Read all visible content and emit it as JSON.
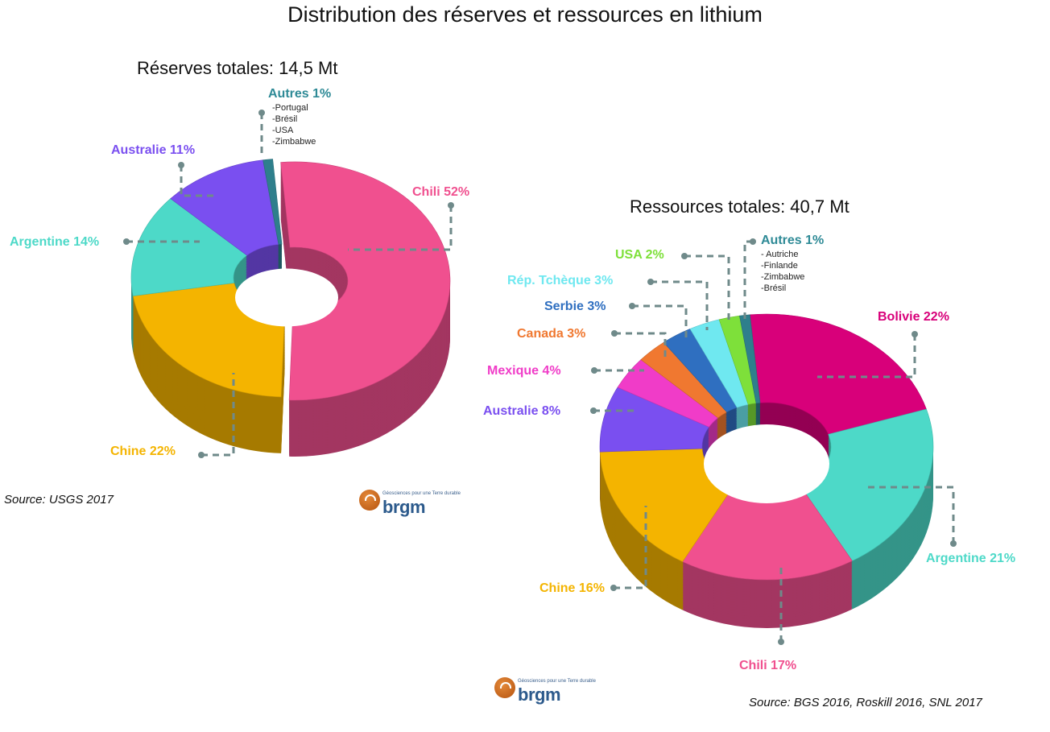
{
  "title": "Distribution des réserves et ressources en lithium",
  "chart_data": [
    {
      "type": "pie",
      "variant": "3d-donut",
      "title": "Réserves totales: 14,5 Mt",
      "source": "Source: USGS 2017",
      "unit": "%",
      "slices": [
        {
          "name": "Chili",
          "value": 52,
          "label": "Chili 52%",
          "color": "#f0508f"
        },
        {
          "name": "Chine",
          "value": 22,
          "label": "Chine 22%",
          "color": "#f4b400"
        },
        {
          "name": "Argentine",
          "value": 14,
          "label": "Argentine 14%",
          "color": "#4dd9c8"
        },
        {
          "name": "Australie",
          "value": 11,
          "label": "Australie 11%",
          "color": "#7a4ff0"
        },
        {
          "name": "Autres",
          "value": 1,
          "label": "Autres 1%",
          "color": "#2e7f8c",
          "details": [
            "-Portugal",
            "-Brésil",
            "-USA",
            "-Zimbabwe"
          ]
        }
      ]
    },
    {
      "type": "pie",
      "variant": "3d-donut",
      "title": "Ressources totales: 40,7 Mt",
      "source": "Source: BGS 2016, Roskill 2016, SNL 2017",
      "unit": "%",
      "slices": [
        {
          "name": "Bolivie",
          "value": 22,
          "label": "Bolivie 22%",
          "color": "#d8007a"
        },
        {
          "name": "Argentine",
          "value": 21,
          "label": "Argentine 21%",
          "color": "#4dd9c8"
        },
        {
          "name": "Chili",
          "value": 17,
          "label": "Chili 17%",
          "color": "#f0508f"
        },
        {
          "name": "Chine",
          "value": 16,
          "label": "Chine 16%",
          "color": "#f4b400"
        },
        {
          "name": "Australie",
          "value": 8,
          "label": "Australie 8%",
          "color": "#7a4ff0"
        },
        {
          "name": "Mexique",
          "value": 4,
          "label": "Mexique 4%",
          "color": "#f03cc8"
        },
        {
          "name": "Canada",
          "value": 3,
          "label": "Canada 3%",
          "color": "#f07830"
        },
        {
          "name": "Serbie",
          "value": 3,
          "label": "Serbie 3%",
          "color": "#2f6fc0"
        },
        {
          "name": "Rép. Tchèque",
          "value": 3,
          "label": "Rép. Tchèque 3%",
          "color": "#6fe8f0"
        },
        {
          "name": "USA",
          "value": 2,
          "label": "USA 2%",
          "color": "#7ee03a"
        },
        {
          "name": "Autres",
          "value": 1,
          "label": "Autres 1%",
          "color": "#2e7f8c",
          "details": [
            "- Autriche",
            "-Finlande",
            "-Zimbabwe",
            "-Brésil"
          ]
        }
      ]
    }
  ],
  "logo": {
    "name": "brgm",
    "tagline": "Géosciences pour une Terre durable"
  },
  "leader_color": "#6f8a8a"
}
